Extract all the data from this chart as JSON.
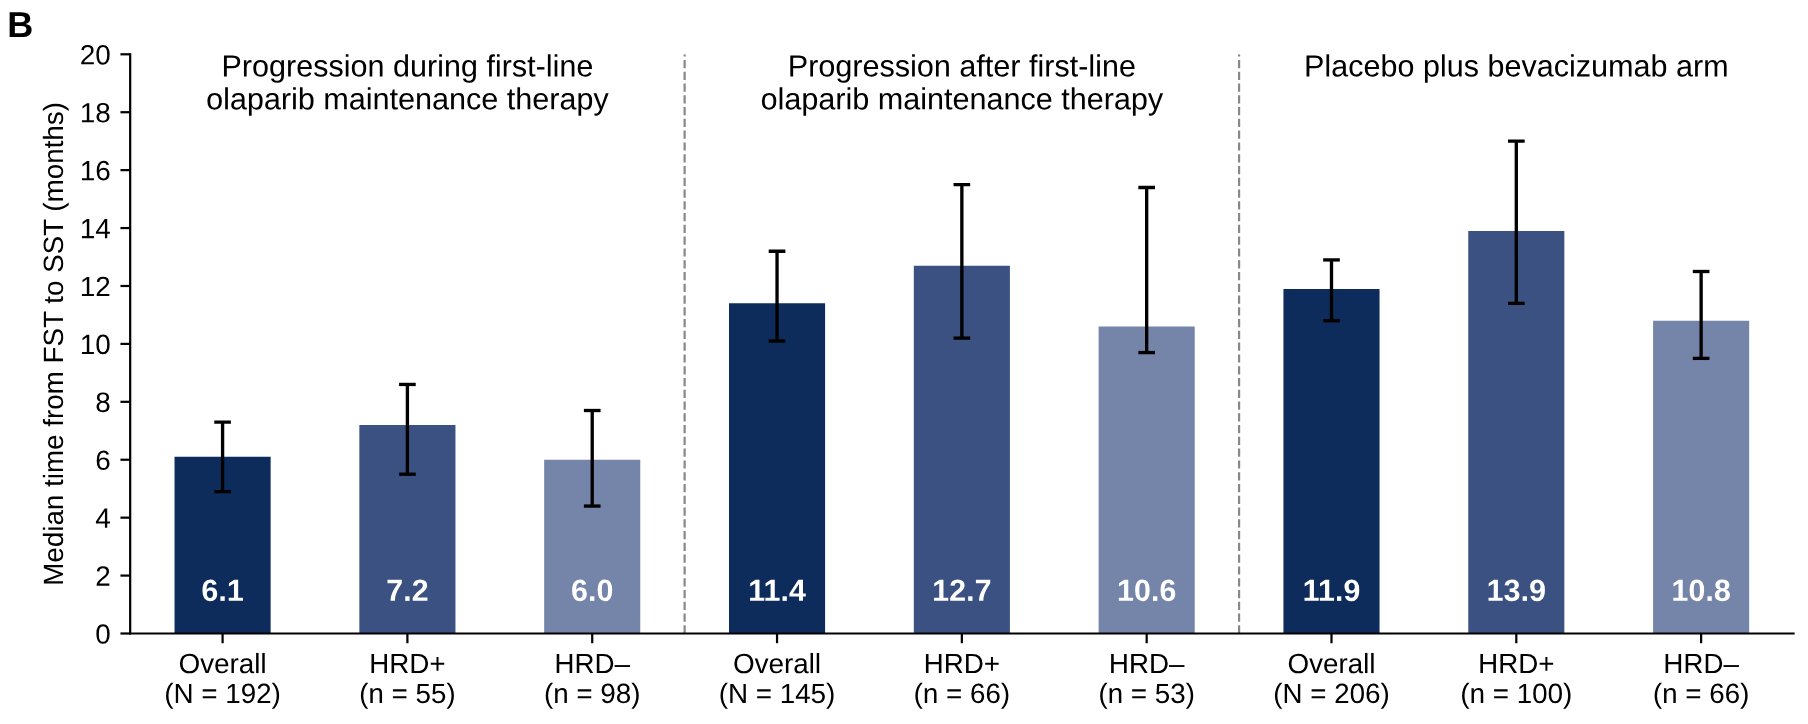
{
  "chart_data": {
    "type": "bar",
    "ylabel": "Median time from FST to SST (months)",
    "categories": [
      "Overall\n(N = 192)",
      "HRD+\n(n = 55)",
      "HRD–\n(n = 98)",
      "Overall\n(N = 145)",
      "HRD+\n(n = 66)",
      "HRD–\n(n = 53)",
      "Overall\n(N = 206)",
      "HRD+\n(n = 100)",
      "HRD–\n(n = 66)"
    ],
    "values": [
      6.1,
      7.2,
      6.0,
      11.4,
      12.7,
      10.6,
      11.9,
      13.9,
      10.8
    ],
    "colors": [
      "#0d2c5c",
      "#3a5182",
      "#7584a9",
      "#0d2c5c",
      "#3a5182",
      "#7584a9",
      "#0d2c5c",
      "#3a5182",
      "#7584a9"
    ],
    "errors": [
      [
        4.9,
        7.3
      ],
      [
        5.5,
        8.6
      ],
      [
        4.4,
        7.7
      ],
      [
        10.1,
        13.2
      ],
      [
        10.2,
        15.5
      ],
      [
        9.7,
        15.4
      ],
      [
        10.8,
        12.9
      ],
      [
        11.4,
        17.0
      ],
      [
        9.5,
        12.5
      ]
    ],
    "value_labels": [
      "6.1",
      "7.2",
      "6.0",
      "11.4",
      "12.7",
      "10.6",
      "11.9",
      "13.9",
      "10.8"
    ],
    "ylim": [
      0,
      20
    ],
    "yticks": [
      0,
      2,
      4,
      6,
      8,
      10,
      12,
      14,
      16,
      18,
      20
    ],
    "grid": false,
    "legend": false,
    "annotations": [
      "B",
      "Progression during first-line\nolaparib maintenance therapy",
      "Progression after first-line\nolaparib maintenance therapy",
      "Placebo plus bevacizumab arm"
    ]
  }
}
